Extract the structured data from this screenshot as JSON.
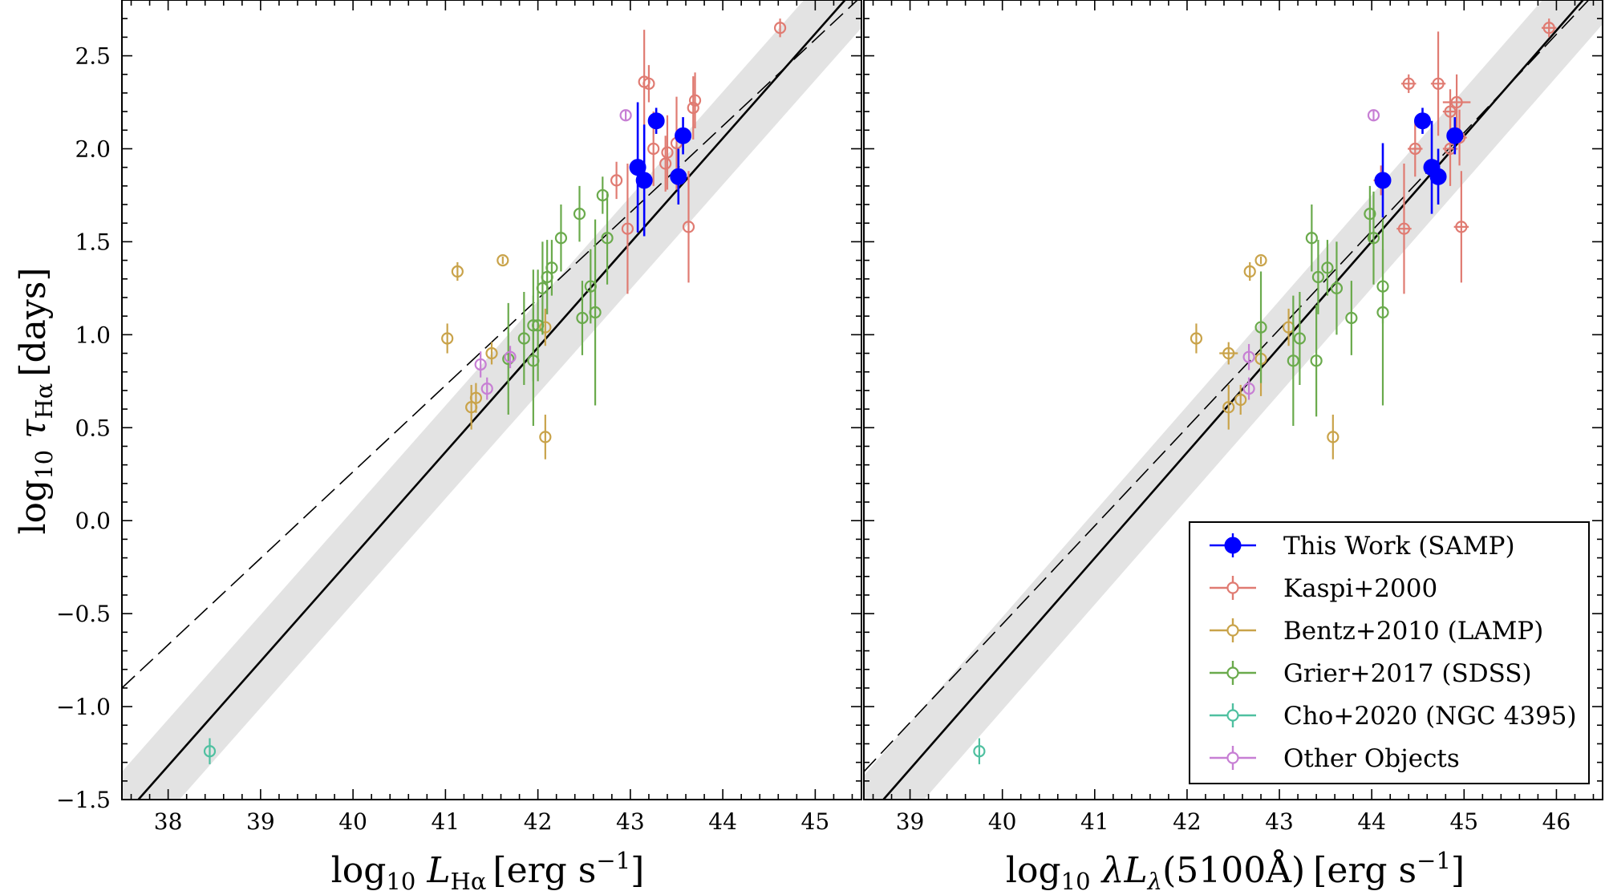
{
  "chart_data": [
    {
      "type": "scatter",
      "panel": "left",
      "xlabel": "log10 L_Hα [erg s^-1]",
      "ylabel": "log10 τ_Hα [days]",
      "xlim": [
        37.5,
        45.5
      ],
      "ylim": [
        -1.5,
        2.8
      ],
      "xticks": [
        38,
        39,
        40,
        41,
        42,
        43,
        44,
        45
      ],
      "yticks": [
        -1.5,
        -1.0,
        -0.5,
        0.0,
        0.5,
        1.0,
        1.5,
        2.0,
        2.5
      ],
      "grid": false,
      "best_fit": {
        "style": "solid",
        "color": "#000000",
        "points": [
          [
            37.5,
            -1.6
          ],
          [
            45.5,
            2.9
          ]
        ]
      },
      "comparison_fit": {
        "style": "dashed",
        "color": "#000000",
        "points": [
          [
            37.5,
            -0.9
          ],
          [
            45.5,
            2.82
          ]
        ]
      },
      "scatter_band_dex": 0.25,
      "series": [
        {
          "name": "This Work (SAMP)",
          "color": "#0000ff",
          "marker": "filled",
          "points": [
            [
              43.28,
              2.15,
              0.0,
              0.07
            ],
            [
              43.08,
              1.9,
              0.0,
              0.35
            ],
            [
              43.15,
              1.83,
              0.0,
              0.3
            ],
            [
              43.57,
              2.07,
              0.0,
              0.1
            ],
            [
              43.52,
              1.85,
              0.0,
              0.15
            ]
          ]
        },
        {
          "name": "Kaspi+2000",
          "color": "#e07b72",
          "marker": "open",
          "points": [
            [
              44.62,
              2.65,
              0.0,
              0.05
            ],
            [
              43.15,
              2.36,
              0.0,
              0.28
            ],
            [
              43.2,
              2.35,
              0.0,
              0.1
            ],
            [
              43.7,
              2.26,
              0.0,
              0.15
            ],
            [
              43.68,
              2.22,
              0.0,
              0.17
            ],
            [
              43.25,
              2.0,
              0.0,
              0.2
            ],
            [
              43.4,
              1.98,
              0.0,
              0.2
            ],
            [
              43.5,
              2.03,
              0.0,
              0.25
            ],
            [
              43.38,
              1.92,
              0.0,
              0.15
            ],
            [
              42.85,
              1.83,
              0.0,
              0.1
            ],
            [
              42.97,
              1.57,
              0.0,
              0.35
            ],
            [
              43.63,
              1.58,
              0.0,
              0.3
            ]
          ]
        },
        {
          "name": "Bentz+2010 (LAMP)",
          "color": "#c9a34a",
          "marker": "open",
          "points": [
            [
              41.13,
              1.34,
              0.0,
              0.05
            ],
            [
              41.62,
              1.4,
              0.0,
              0.02
            ],
            [
              41.02,
              0.98,
              0.0,
              0.08
            ],
            [
              41.28,
              0.61,
              0.0,
              0.12
            ],
            [
              41.33,
              0.66,
              0.0,
              0.08
            ],
            [
              41.5,
              0.9,
              0.0,
              0.06
            ],
            [
              42.08,
              1.04,
              0.0,
              0.1
            ],
            [
              42.08,
              0.45,
              0.0,
              0.12
            ]
          ]
        },
        {
          "name": "Grier+2017 (SDSS)",
          "color": "#6aaa4c",
          "marker": "open",
          "points": [
            [
              42.7,
              1.75,
              0.0,
              0.1
            ],
            [
              42.45,
              1.65,
              0.0,
              0.15
            ],
            [
              42.25,
              1.52,
              0.0,
              0.18
            ],
            [
              42.75,
              1.52,
              0.0,
              0.25
            ],
            [
              42.15,
              1.36,
              0.0,
              0.15
            ],
            [
              42.1,
              1.31,
              0.0,
              0.2
            ],
            [
              42.05,
              1.25,
              0.0,
              0.25
            ],
            [
              41.85,
              0.98,
              0.0,
              0.25
            ],
            [
              41.95,
              1.05,
              0.0,
              0.3
            ],
            [
              42.0,
              1.05,
              0.0,
              0.3
            ],
            [
              41.95,
              0.86,
              0.0,
              0.35
            ],
            [
              42.57,
              1.26,
              0.0,
              0.2
            ],
            [
              42.48,
              1.09,
              0.0,
              0.2
            ],
            [
              42.62,
              1.12,
              0.0,
              0.5
            ],
            [
              41.68,
              0.87,
              0.0,
              0.3
            ]
          ]
        },
        {
          "name": "Cho+2020 (NGC 4395)",
          "color": "#4fc0a0",
          "marker": "open",
          "points": [
            [
              38.45,
              -1.24,
              0.0,
              0.07
            ]
          ]
        },
        {
          "name": "Other Objects",
          "color": "#c77fd4",
          "marker": "open",
          "points": [
            [
              42.95,
              2.18,
              0.0,
              0.03
            ],
            [
              41.38,
              0.84,
              0.0,
              0.07
            ],
            [
              41.45,
              0.71,
              0.0,
              0.06
            ],
            [
              41.7,
              0.88,
              0.0,
              0.06
            ]
          ]
        }
      ]
    },
    {
      "type": "scatter",
      "panel": "right",
      "xlabel": "log10 λL_λ(5100Å) [erg s^-1]",
      "ylabel": "",
      "xlim": [
        38.5,
        46.5
      ],
      "ylim": [
        -1.5,
        2.8
      ],
      "xticks": [
        39,
        40,
        41,
        42,
        43,
        44,
        45,
        46
      ],
      "yticks": [
        -1.5,
        -1.0,
        -0.5,
        0.0,
        0.5,
        1.0,
        1.5,
        2.0,
        2.5
      ],
      "grid": false,
      "best_fit": {
        "style": "solid",
        "color": "#000000",
        "points": [
          [
            38.5,
            -1.62
          ],
          [
            46.5,
            2.92
          ]
        ]
      },
      "comparison_fit": {
        "style": "dashed",
        "color": "#000000",
        "points": [
          [
            38.5,
            -1.35
          ],
          [
            46.5,
            2.88
          ]
        ]
      },
      "scatter_band_dex": 0.25,
      "series": [
        {
          "name": "This Work (SAMP)",
          "color": "#0000ff",
          "marker": "filled",
          "points": [
            [
              44.55,
              2.15,
              0.0,
              0.07
            ],
            [
              44.9,
              2.07,
              0.0,
              0.1
            ],
            [
              44.65,
              1.9,
              0.0,
              0.25
            ],
            [
              44.72,
              1.85,
              0.0,
              0.15
            ],
            [
              44.12,
              1.83,
              0.0,
              0.2
            ]
          ]
        },
        {
          "name": "Kaspi+2000",
          "color": "#e07b72",
          "marker": "open",
          "points": [
            [
              45.92,
              2.65,
              0.08,
              0.05
            ],
            [
              44.4,
              2.35,
              0.08,
              0.05
            ],
            [
              44.72,
              2.35,
              0.08,
              0.28
            ],
            [
              44.92,
              2.25,
              0.15,
              0.15
            ],
            [
              44.85,
              2.2,
              0.08,
              0.12
            ],
            [
              44.47,
              2.0,
              0.08,
              0.15
            ],
            [
              44.85,
              2.0,
              0.08,
              0.2
            ],
            [
              44.95,
              2.06,
              0.08,
              0.15
            ],
            [
              44.1,
              1.83,
              0.08,
              0.08
            ],
            [
              44.35,
              1.57,
              0.08,
              0.35
            ],
            [
              44.97,
              1.58,
              0.08,
              0.3
            ]
          ]
        },
        {
          "name": "Bentz+2010 (LAMP)",
          "color": "#c9a34a",
          "marker": "open",
          "points": [
            [
              42.68,
              1.34,
              0.0,
              0.05
            ],
            [
              42.8,
              1.4,
              0.0,
              0.02
            ],
            [
              42.1,
              0.98,
              0.0,
              0.08
            ],
            [
              42.45,
              0.9,
              0.1,
              0.06
            ],
            [
              42.45,
              0.61,
              0.0,
              0.12
            ],
            [
              42.58,
              0.65,
              0.0,
              0.08
            ],
            [
              42.8,
              0.87,
              0.0,
              0.2
            ],
            [
              43.1,
              1.04,
              0.0,
              0.1
            ],
            [
              43.58,
              0.45,
              0.0,
              0.12
            ]
          ]
        },
        {
          "name": "Grier+2017 (SDSS)",
          "color": "#6aaa4c",
          "marker": "open",
          "points": [
            [
              43.98,
              1.65,
              0.0,
              0.15
            ],
            [
              43.35,
              1.52,
              0.0,
              0.18
            ],
            [
              44.02,
              1.52,
              0.0,
              0.25
            ],
            [
              43.52,
              1.36,
              0.0,
              0.15
            ],
            [
              43.42,
              1.31,
              0.0,
              0.2
            ],
            [
              43.62,
              1.25,
              0.0,
              0.25
            ],
            [
              43.78,
              1.09,
              0.0,
              0.2
            ],
            [
              44.12,
              1.26,
              0.0,
              0.2
            ],
            [
              44.12,
              1.12,
              0.0,
              0.5
            ],
            [
              42.8,
              1.04,
              0.0,
              0.3
            ],
            [
              43.22,
              0.98,
              0.0,
              0.25
            ],
            [
              43.15,
              0.86,
              0.0,
              0.35
            ],
            [
              43.4,
              0.86,
              0.0,
              0.3
            ]
          ]
        },
        {
          "name": "Cho+2020 (NGC 4395)",
          "color": "#4fc0a0",
          "marker": "open",
          "points": [
            [
              39.75,
              -1.24,
              0.0,
              0.07
            ]
          ]
        },
        {
          "name": "Other Objects",
          "color": "#c77fd4",
          "marker": "open",
          "points": [
            [
              44.02,
              2.18,
              0.0,
              0.03
            ],
            [
              42.67,
              0.88,
              0.0,
              0.07
            ],
            [
              42.67,
              0.71,
              0.0,
              0.06
            ]
          ]
        }
      ]
    }
  ],
  "legend": {
    "placement": "lower-right of right panel",
    "entries": [
      {
        "label": "This Work (SAMP)",
        "color": "#0000ff",
        "marker": "filled"
      },
      {
        "label": "Kaspi+2000",
        "color": "#e07b72",
        "marker": "open"
      },
      {
        "label": "Bentz+2010 (LAMP)",
        "color": "#c9a34a",
        "marker": "open"
      },
      {
        "label": "Grier+2017 (SDSS)",
        "color": "#6aaa4c",
        "marker": "open"
      },
      {
        "label": "Cho+2020 (NGC 4395)",
        "color": "#4fc0a0",
        "marker": "open"
      },
      {
        "label": "Other Objects",
        "color": "#c77fd4",
        "marker": "open"
      }
    ]
  }
}
